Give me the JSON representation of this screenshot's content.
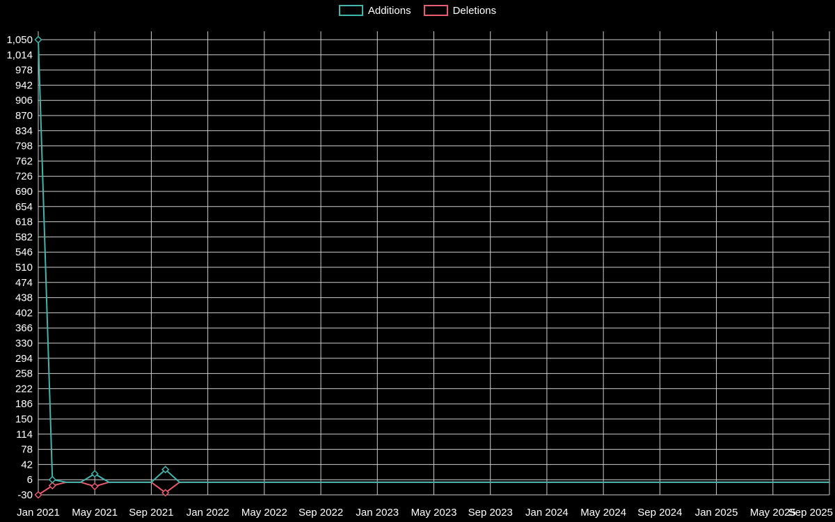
{
  "legend": [
    {
      "label": "Additions",
      "color": "#3fb6ae"
    },
    {
      "label": "Deletions",
      "color": "#e85c6e"
    }
  ],
  "colors": {
    "background": "#000000",
    "grid": "#cfcfcf",
    "text": "#ffffff",
    "additions": "#3fb6ae",
    "deletions": "#e85c6e"
  },
  "chart_data": {
    "type": "line",
    "title": "",
    "xlabel": "",
    "ylabel": "",
    "legend_position": "top",
    "grid": true,
    "ylim": [
      -30,
      1050
    ],
    "y_tick_step": 36,
    "x_tick_every": 4,
    "x_tick_labels": [
      "Jan 2021",
      "May 2021",
      "Sep 2021",
      "Jan 2022",
      "May 2022",
      "Sep 2022",
      "Jan 2023",
      "May 2023",
      "Sep 2023",
      "Jan 2024",
      "May 2024",
      "Sep 2024",
      "Jan 2025",
      "May 2025",
      "Sep 2025"
    ],
    "series": [
      {
        "name": "Additions",
        "color": "#3fb6ae",
        "values": [
          1050,
          6,
          0,
          0,
          20,
          0,
          0,
          0,
          0,
          30,
          0,
          0,
          0,
          0,
          0,
          0,
          0,
          0,
          0,
          0,
          0,
          0,
          0,
          0,
          0,
          0,
          0,
          0,
          0,
          0,
          0,
          0,
          0,
          0,
          0,
          0,
          0,
          0,
          0,
          0,
          0,
          0,
          0,
          0,
          0,
          0,
          0,
          0,
          0,
          0,
          0,
          0,
          0,
          0,
          0,
          0,
          0
        ]
      },
      {
        "name": "Deletions",
        "color": "#e85c6e",
        "values": [
          -30,
          -8,
          0,
          0,
          -10,
          0,
          0,
          0,
          0,
          -25,
          0,
          0,
          0,
          0,
          0,
          0,
          0,
          0,
          0,
          0,
          0,
          0,
          0,
          0,
          0,
          0,
          0,
          0,
          0,
          0,
          0,
          0,
          0,
          0,
          0,
          0,
          0,
          0,
          0,
          0,
          0,
          0,
          0,
          0,
          0,
          0,
          0,
          0,
          0,
          0,
          0,
          0,
          0,
          0,
          0,
          0,
          0
        ]
      }
    ]
  }
}
